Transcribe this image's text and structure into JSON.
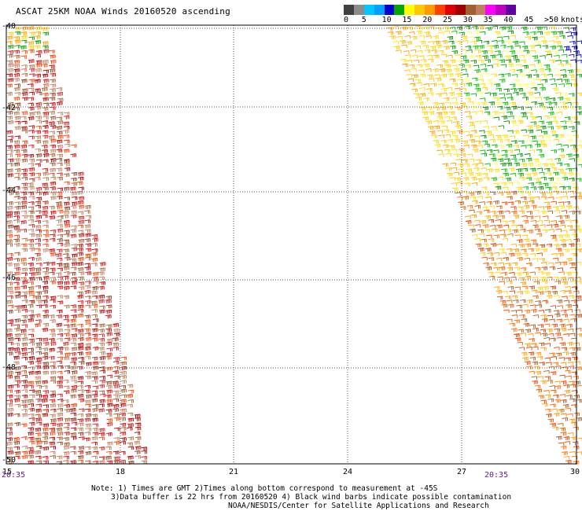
{
  "title": "ASCAT 25KM NOAA Winds 20160520 ascending",
  "legend": {
    "unit": "knots",
    "ticks": [
      "0",
      "5",
      "10",
      "15",
      "20",
      "25",
      "30",
      "35",
      "40",
      "45",
      ">50"
    ],
    "colors": [
      "#404040",
      "#8c8c8c",
      "#00c8ff",
      "#00a0ff",
      "#0000d0",
      "#00a800",
      "#ffff00",
      "#ffc800",
      "#ff9a00",
      "#ff4000",
      "#e00000",
      "#a00000",
      "#a06030",
      "#c08060",
      "#ff00ff",
      "#c000c0",
      "#6000a0"
    ]
  },
  "map": {
    "lat_labels": [
      "-40",
      "-42",
      "-44",
      "-46",
      "-48",
      "-50"
    ],
    "lon_labels": [
      "15",
      "18",
      "21",
      "24",
      "27",
      "30"
    ]
  },
  "swath_times": {
    "left": "20:35",
    "right": "20:35"
  },
  "notes": {
    "line1": "Note: 1) Times are GMT 2)Times along bottom correspond to measurement at -45S",
    "line2": "3)Data buffer is 22 hrs from 20160520 4) Black wind barbs indicate possible contamination",
    "line3": "NOAA/NESDIS/Center for Satellite Applications and Research"
  }
}
